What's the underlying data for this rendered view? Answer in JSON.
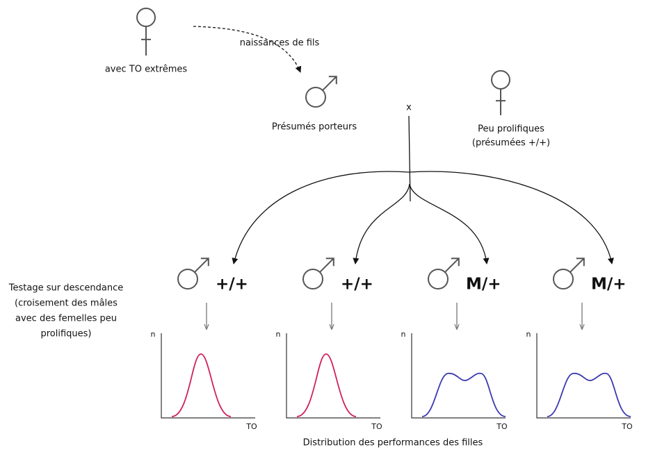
{
  "top_female": {
    "label": "avec TO extrêmes"
  },
  "arrow_label": "naissances de fils",
  "male": {
    "label": "Présumés porteurs"
  },
  "cross": "x",
  "female": {
    "label": [
      "Peu prolifiques",
      "(présumées +/+)"
    ]
  },
  "side_label": [
    "Testage sur descendance",
    "(croisement des mâles",
    "avec des femelles peu",
    "prolifiques)"
  ],
  "offspring": [
    {
      "genotype": "+/+",
      "y_axis": "n",
      "x_axis": "TO"
    },
    {
      "genotype": "+/+",
      "y_axis": "n",
      "x_axis": "TO"
    },
    {
      "genotype": "M/+",
      "y_axis": "n",
      "x_axis": "TO"
    },
    {
      "genotype": "M/+",
      "y_axis": "n",
      "x_axis": "TO"
    }
  ],
  "footer": "Distribution des performances des filles"
}
